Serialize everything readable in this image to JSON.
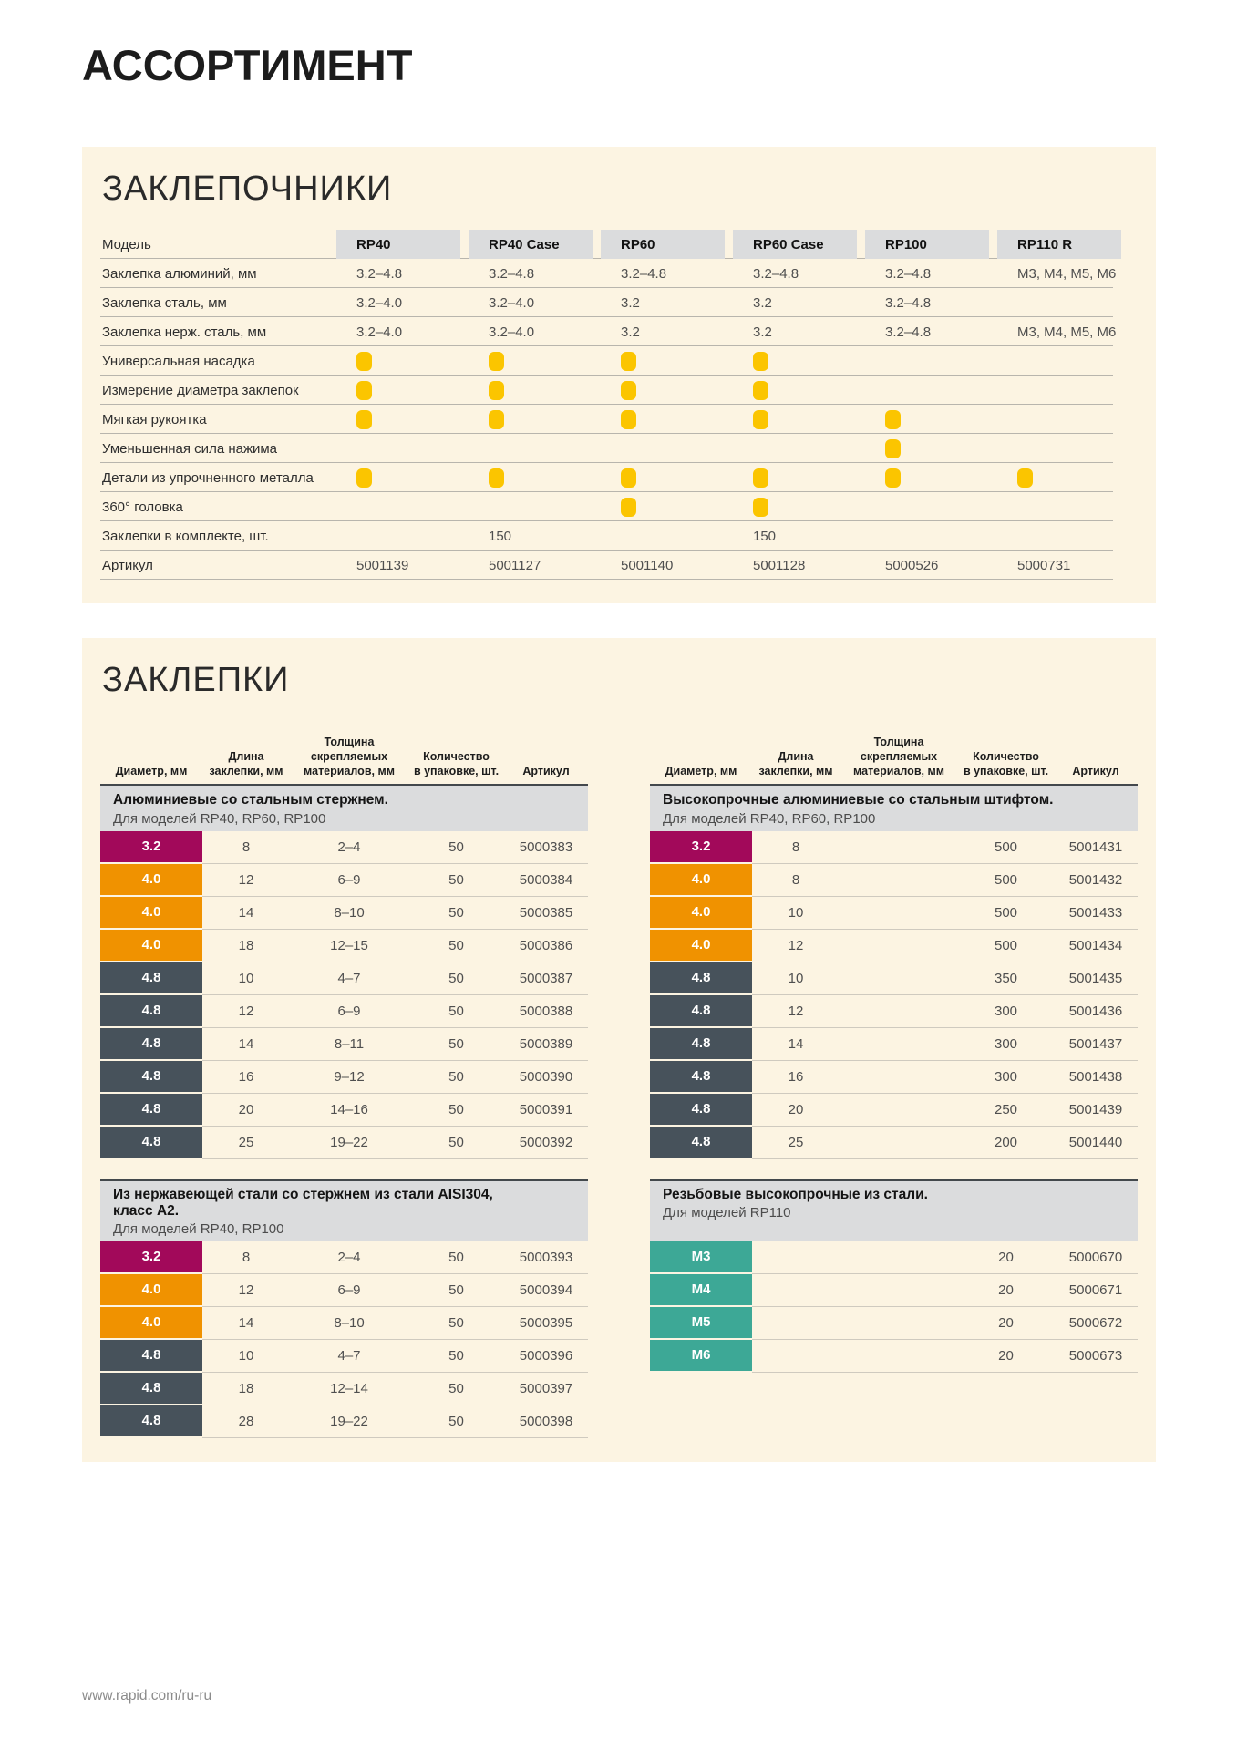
{
  "page": {
    "title": "АССОРТИМЕНТ",
    "footer_url": "www.rapid.com/ru-ru"
  },
  "colors": {
    "accent_yellow": "#FBC500",
    "panel_bg": "#FCF4E2",
    "header_band": "#DBDCDD",
    "rule_dark": "#43484C",
    "dia_magenta": "#A2095A",
    "dia_orange": "#F09200",
    "dia_slate": "#47525B",
    "dia_teal": "#3DA896"
  },
  "riveters": {
    "section_title": "ЗАКЛЕПОЧНИКИ",
    "model_label": "Модель",
    "models": [
      "RP40",
      "RP40 Case",
      "RP60",
      "RP60 Case",
      "RP100",
      "RP110 R"
    ],
    "rows": [
      {
        "label": "Заклепка алюминий, мм",
        "type": "text",
        "values": [
          "3.2–4.8",
          "3.2–4.8",
          "3.2–4.8",
          "3.2–4.8",
          "3.2–4.8",
          "M3, M4, M5, M6"
        ]
      },
      {
        "label": "Заклепка сталь, мм",
        "type": "text",
        "values": [
          "3.2–4.0",
          "3.2–4.0",
          "3.2",
          "3.2",
          "3.2–4.8",
          ""
        ]
      },
      {
        "label": "Заклепка нерж. сталь, мм",
        "type": "text",
        "values": [
          "3.2–4.0",
          "3.2–4.0",
          "3.2",
          "3.2",
          "3.2–4.8",
          "M3, M4, M5, M6"
        ]
      },
      {
        "label": "Универсальная насадка",
        "type": "dot",
        "values": [
          1,
          1,
          1,
          1,
          0,
          0
        ]
      },
      {
        "label": "Измерение диаметра заклепок",
        "type": "dot",
        "values": [
          1,
          1,
          1,
          1,
          0,
          0
        ]
      },
      {
        "label": "Мягкая рукоятка",
        "type": "dot",
        "values": [
          1,
          1,
          1,
          1,
          1,
          0
        ]
      },
      {
        "label": "Уменьшенная сила нажима",
        "type": "dot",
        "values": [
          0,
          0,
          0,
          0,
          1,
          0
        ]
      },
      {
        "label": "Детали из упрочненного металла",
        "type": "dot",
        "values": [
          1,
          1,
          1,
          1,
          1,
          1
        ]
      },
      {
        "label": "360° головка",
        "type": "dot",
        "values": [
          0,
          0,
          1,
          1,
          0,
          0
        ]
      },
      {
        "label": "Заклепки в комплекте, шт.",
        "type": "text",
        "values": [
          "",
          "150",
          "",
          "150",
          "",
          ""
        ]
      },
      {
        "label": "Артикул",
        "type": "text",
        "values": [
          "5001139",
          "5001127",
          "5001140",
          "5001128",
          "5000526",
          "5000731"
        ]
      }
    ]
  },
  "rivets": {
    "section_title": "ЗАКЛЕПКИ",
    "col_headers": [
      "Диаметр, мм",
      "Длина\nзаклепки, мм",
      "Толщина\nскрепляемых\nматериалов, мм",
      "Количество\nв упаковке, шт.",
      "Артикул"
    ],
    "tables": [
      {
        "title": "Алюминиевые со стальным стержнем.",
        "subtitle": "Для моделей RP40, RP60, RP100",
        "col_headers": true,
        "tall_head": false,
        "rows": [
          {
            "dia": "3.2",
            "c": "magenta",
            "len": "8",
            "thick": "2–4",
            "qty": "50",
            "sku": "5000383"
          },
          {
            "dia": "4.0",
            "c": "orange",
            "len": "12",
            "thick": "6–9",
            "qty": "50",
            "sku": "5000384"
          },
          {
            "dia": "4.0",
            "c": "orange",
            "len": "14",
            "thick": "8–10",
            "qty": "50",
            "sku": "5000385"
          },
          {
            "dia": "4.0",
            "c": "orange",
            "len": "18",
            "thick": "12–15",
            "qty": "50",
            "sku": "5000386"
          },
          {
            "dia": "4.8",
            "c": "slate",
            "len": "10",
            "thick": "4–7",
            "qty": "50",
            "sku": "5000387"
          },
          {
            "dia": "4.8",
            "c": "slate",
            "len": "12",
            "thick": "6–9",
            "qty": "50",
            "sku": "5000388"
          },
          {
            "dia": "4.8",
            "c": "slate",
            "len": "14",
            "thick": "8–11",
            "qty": "50",
            "sku": "5000389"
          },
          {
            "dia": "4.8",
            "c": "slate",
            "len": "16",
            "thick": "9–12",
            "qty": "50",
            "sku": "5000390"
          },
          {
            "dia": "4.8",
            "c": "slate",
            "len": "20",
            "thick": "14–16",
            "qty": "50",
            "sku": "5000391"
          },
          {
            "dia": "4.8",
            "c": "slate",
            "len": "25",
            "thick": "19–22",
            "qty": "50",
            "sku": "5000392"
          }
        ]
      },
      {
        "title": "Высокопрочные алюминиевые со стальным штифтом.",
        "subtitle": "Для моделей RP40, RP60, RP100",
        "col_headers": true,
        "tall_head": false,
        "rows": [
          {
            "dia": "3.2",
            "c": "magenta",
            "len": "8",
            "thick": "",
            "qty": "500",
            "sku": "5001431"
          },
          {
            "dia": "4.0",
            "c": "orange",
            "len": "8",
            "thick": "",
            "qty": "500",
            "sku": "5001432"
          },
          {
            "dia": "4.0",
            "c": "orange",
            "len": "10",
            "thick": "",
            "qty": "500",
            "sku": "5001433"
          },
          {
            "dia": "4.0",
            "c": "orange",
            "len": "12",
            "thick": "",
            "qty": "500",
            "sku": "5001434"
          },
          {
            "dia": "4.8",
            "c": "slate",
            "len": "10",
            "thick": "",
            "qty": "350",
            "sku": "5001435"
          },
          {
            "dia": "4.8",
            "c": "slate",
            "len": "12",
            "thick": "",
            "qty": "300",
            "sku": "5001436"
          },
          {
            "dia": "4.8",
            "c": "slate",
            "len": "14",
            "thick": "",
            "qty": "300",
            "sku": "5001437"
          },
          {
            "dia": "4.8",
            "c": "slate",
            "len": "16",
            "thick": "",
            "qty": "300",
            "sku": "5001438"
          },
          {
            "dia": "4.8",
            "c": "slate",
            "len": "20",
            "thick": "",
            "qty": "250",
            "sku": "5001439"
          },
          {
            "dia": "4.8",
            "c": "slate",
            "len": "25",
            "thick": "",
            "qty": "200",
            "sku": "5001440"
          }
        ]
      },
      {
        "title": "Из нержавеющей стали со стержнем из стали AISI304,\nкласс А2.",
        "subtitle": "Для моделей RP40, RP100",
        "col_headers": false,
        "tall_head": true,
        "rows": [
          {
            "dia": "3.2",
            "c": "magenta",
            "len": "8",
            "thick": "2–4",
            "qty": "50",
            "sku": "5000393"
          },
          {
            "dia": "4.0",
            "c": "orange",
            "len": "12",
            "thick": "6–9",
            "qty": "50",
            "sku": "5000394"
          },
          {
            "dia": "4.0",
            "c": "orange",
            "len": "14",
            "thick": "8–10",
            "qty": "50",
            "sku": "5000395"
          },
          {
            "dia": "4.8",
            "c": "slate",
            "len": "10",
            "thick": "4–7",
            "qty": "50",
            "sku": "5000396"
          },
          {
            "dia": "4.8",
            "c": "slate",
            "len": "18",
            "thick": "12–14",
            "qty": "50",
            "sku": "5000397"
          },
          {
            "dia": "4.8",
            "c": "slate",
            "len": "28",
            "thick": "19–22",
            "qty": "50",
            "sku": "5000398"
          }
        ]
      },
      {
        "title": "Резьбовые высокопрочные из стали.",
        "subtitle": "Для моделей RP110",
        "col_headers": false,
        "tall_head": true,
        "rows": [
          {
            "dia": "M3",
            "c": "teal",
            "len": "",
            "thick": "",
            "qty": "20",
            "sku": "5000670"
          },
          {
            "dia": "M4",
            "c": "teal",
            "len": "",
            "thick": "",
            "qty": "20",
            "sku": "5000671"
          },
          {
            "dia": "M5",
            "c": "teal",
            "len": "",
            "thick": "",
            "qty": "20",
            "sku": "5000672"
          },
          {
            "dia": "M6",
            "c": "teal",
            "len": "",
            "thick": "",
            "qty": "20",
            "sku": "5000673"
          }
        ]
      }
    ]
  }
}
